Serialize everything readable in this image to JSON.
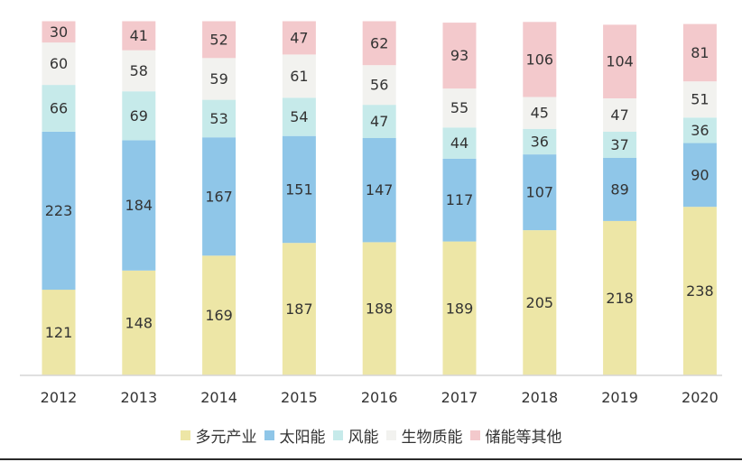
{
  "chart_data": {
    "type": "bar",
    "stacked": true,
    "categories": [
      "2012",
      "2013",
      "2014",
      "2015",
      "2016",
      "2017",
      "2018",
      "2019",
      "2020"
    ],
    "series": [
      {
        "name": "多元产业",
        "color": "#ede6a6",
        "values": [
          121,
          148,
          169,
          187,
          188,
          189,
          205,
          218,
          238
        ]
      },
      {
        "name": "太阳能",
        "color": "#8fc6e8",
        "values": [
          223,
          184,
          167,
          151,
          147,
          117,
          107,
          89,
          90
        ]
      },
      {
        "name": "风能",
        "color": "#c6eaea",
        "values": [
          66,
          69,
          53,
          54,
          47,
          44,
          36,
          37,
          36
        ]
      },
      {
        "name": "生物质能",
        "color": "#f2f2ef",
        "values": [
          60,
          58,
          59,
          61,
          56,
          55,
          45,
          47,
          51
        ]
      },
      {
        "name": "储能等其他",
        "color": "#f3c9cc",
        "values": [
          30,
          41,
          52,
          47,
          62,
          93,
          106,
          104,
          81
        ]
      }
    ],
    "title": "",
    "xlabel": "",
    "ylabel": "",
    "ylim": [
      0,
      500
    ],
    "grid": false,
    "legend_position": "bottom"
  }
}
